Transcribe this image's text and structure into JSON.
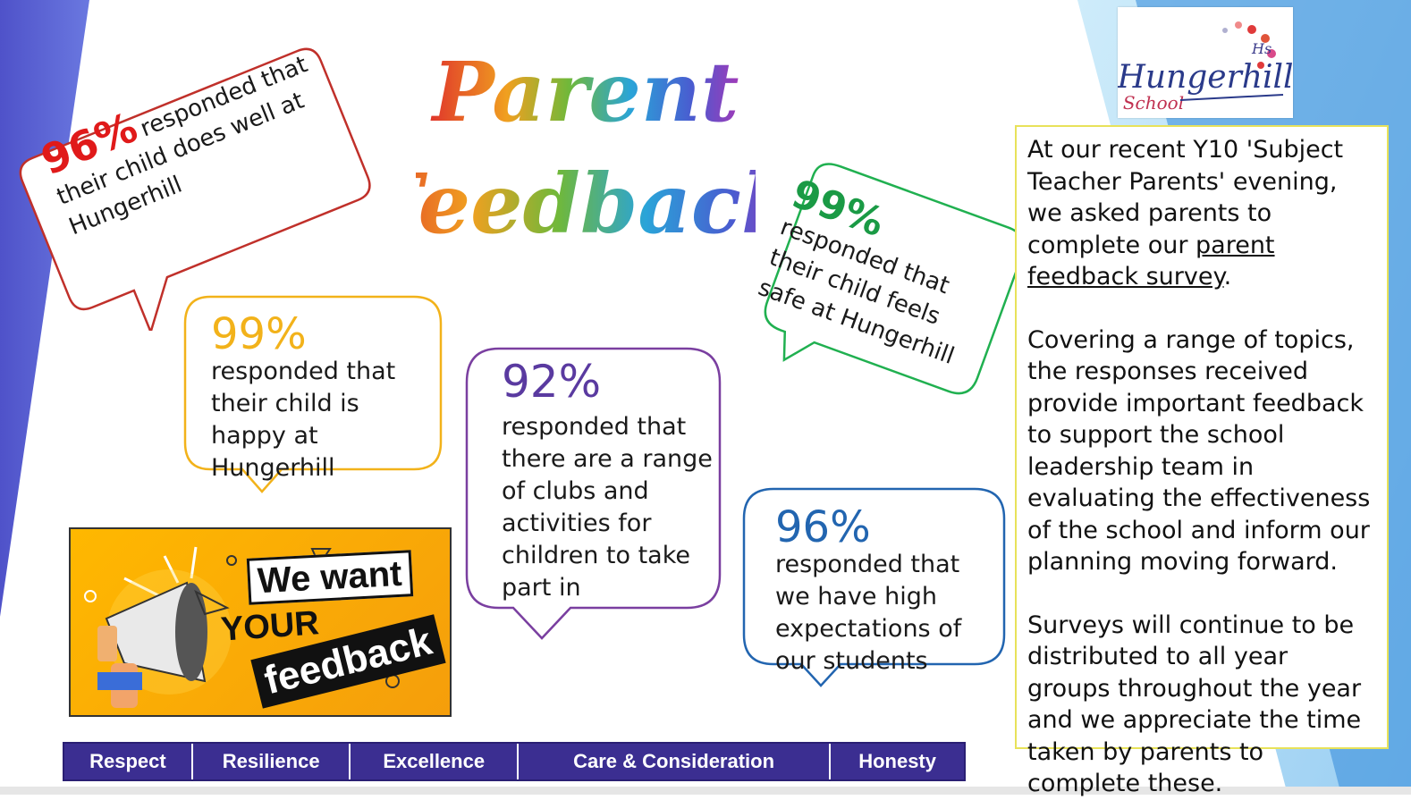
{
  "title": {
    "line1": "Parent",
    "line2": "Feedback"
  },
  "logo": {
    "name": "Hungerhill",
    "sub": "School",
    "mono": "Hs"
  },
  "bubbles": [
    {
      "pct": "96%",
      "text": "responded that their child does well at Hungerhill",
      "color": "#d32020"
    },
    {
      "pct": "99%",
      "text": "responded that their child is happy at Hungerhill",
      "color": "#f2b21a"
    },
    {
      "pct": "92%",
      "text": "responded that there are a range of clubs and activities for children to take part in",
      "color": "#7a3fa0"
    },
    {
      "pct": "99%",
      "text": "responded that their child feels safe at Hungerhill",
      "color": "#20b050"
    },
    {
      "pct": "96%",
      "text": "responded that we have high expectations of our students",
      "color": "#2265b0"
    }
  ],
  "banner": {
    "line1": "We want",
    "line2": "YOUR",
    "line3": "feedback"
  },
  "info": {
    "p1_a": "At our recent Y10 'Subject Teacher Parents' evening, we asked parents to complete our ",
    "p1_link": "parent feedback survey",
    "p1_b": ".",
    "p2": "Covering a range of topics, the responses received provide important feedback to support the school leadership team in evaluating the effectiveness of the school and inform our planning moving forward.",
    "p3": "Surveys will continue to be distributed to all year groups throughout the year and we appreciate the time taken by parents to complete these."
  },
  "values": [
    "Respect",
    "Resilience",
    "Excellence",
    "Care & Consideration",
    "Honesty"
  ],
  "colors": {
    "purple_bg": "#5b5fd6",
    "cyan_bg": "#6fc6ee",
    "values_bar": "#3b2e91"
  }
}
